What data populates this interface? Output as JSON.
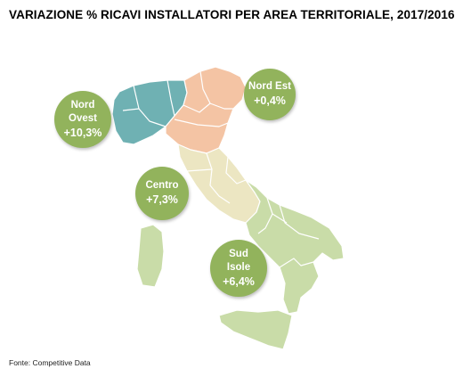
{
  "title": "VARIAZIONE % RICAVI INSTALLATORI  PER AREA TERRITORIALE, 2017/2016",
  "source": "Fonte: Competitive Data",
  "colors": {
    "nord_ovest": "#6fb1b3",
    "nord_est": "#f4c4a4",
    "centro": "#ece6c2",
    "sud_isole": "#c9dca8",
    "bubble": "#92b35c",
    "borders": "#ffffff"
  },
  "areas": [
    {
      "id": "nord-ovest",
      "name_lines": [
        "Nord",
        "Ovest"
      ],
      "value": "+10,3%",
      "region_color": "#6fb1b3"
    },
    {
      "id": "nord-est",
      "name_lines": [
        "Nord Est"
      ],
      "value": "+0,4%",
      "region_color": "#f4c4a4"
    },
    {
      "id": "centro",
      "name_lines": [
        "Centro"
      ],
      "value": "+7,3%",
      "region_color": "#ece6c2"
    },
    {
      "id": "sud-isole",
      "name_lines": [
        "Sud",
        "Isole"
      ],
      "value": "+6,4%",
      "region_color": "#c9dca8"
    }
  ]
}
